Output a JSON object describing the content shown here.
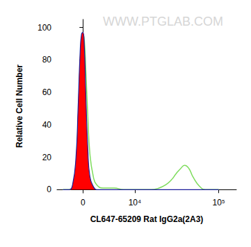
{
  "chart_data": {
    "type": "line",
    "x_label": "CL647-65209 Rat IgG2a(2A3)",
    "y_label": "Relative Cell Number",
    "annotations": [
      "WWW.PTGLAB.COM"
    ],
    "x": [
      -3000,
      -2000,
      -1500,
      -1000,
      -700,
      -400,
      -200,
      0,
      200,
      400,
      700,
      1000,
      1500,
      2000,
      3000,
      4000,
      5000,
      7000,
      10000,
      13000,
      16000,
      20000,
      24000,
      28000,
      32000,
      36000,
      40000,
      45000,
      50000,
      60000,
      70000,
      85000,
      100000
    ],
    "series": [
      {
        "type": "line",
        "color": "#7ddc5c",
        "line_style": "solid",
        "values": [
          0,
          0,
          2,
          15,
          42,
          78,
          93,
          96,
          92,
          75,
          45,
          22,
          8,
          3,
          1,
          1,
          1,
          0,
          0,
          0,
          0,
          1,
          3,
          6,
          10,
          13,
          15,
          13,
          8,
          2,
          0,
          0,
          0
        ]
      },
      {
        "type": "area",
        "color": "#ff0000",
        "line_style": "solid",
        "values": [
          0,
          0,
          3,
          20,
          50,
          85,
          96,
          97,
          88,
          60,
          25,
          8,
          2,
          0,
          0,
          0,
          0,
          0,
          0,
          0,
          0,
          0,
          0,
          0,
          0,
          0,
          0,
          0,
          0,
          0,
          0,
          0,
          0
        ]
      }
    ],
    "xlim": [
      -4000,
      160000
    ],
    "xticks": [
      0,
      {
        "value": 10000,
        "label": "10⁴"
      },
      {
        "value": 100000,
        "label": "10⁵"
      }
    ],
    "ylim": [
      -2,
      105
    ],
    "yticks": [
      0,
      20,
      40,
      60,
      80,
      100
    ],
    "grid": false,
    "tick_labels": true
  }
}
